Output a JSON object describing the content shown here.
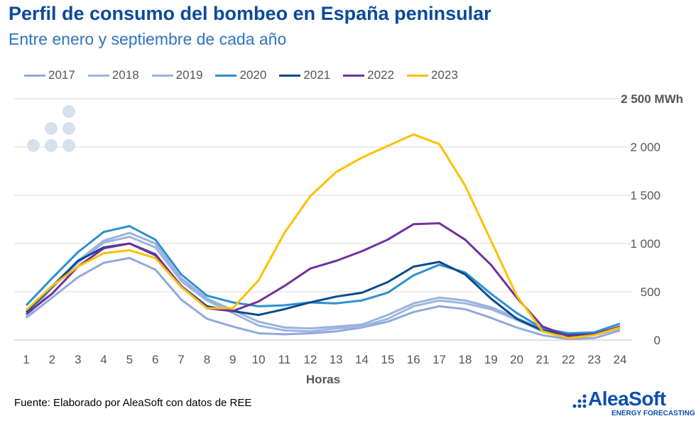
{
  "header": {
    "title": "Perfil de consumo del bombeo en España peninsular",
    "subtitle": "Entre enero y septiembre de cada año"
  },
  "footer": {
    "source": "Fuente: Elaborado por AleaSoft con datos de REE",
    "logo_name": "AleaSoft",
    "logo_tagline": "ENERGY FORECASTING"
  },
  "chart_data": {
    "type": "line",
    "title": "Perfil de consumo del bombeo en España peninsular",
    "subtitle": "Entre enero y septiembre de cada año",
    "xlabel": "Horas",
    "ylabel": "",
    "y_unit": "MWh",
    "ylim": [
      0,
      2500
    ],
    "yticks": [
      "0",
      "500",
      "1 000",
      "1 500",
      "2 000",
      "2 500 MWh"
    ],
    "x": [
      1,
      2,
      3,
      4,
      5,
      6,
      7,
      8,
      9,
      10,
      11,
      12,
      13,
      14,
      15,
      16,
      17,
      18,
      19,
      20,
      21,
      22,
      23,
      24
    ],
    "grid": "horizontal",
    "legend": "top",
    "series": [
      {
        "name": "2017",
        "color": "#8FAADC",
        "values": [
          230,
          440,
          650,
          800,
          850,
          730,
          420,
          220,
          140,
          70,
          60,
          70,
          90,
          130,
          190,
          290,
          350,
          320,
          230,
          130,
          50,
          10,
          20,
          100
        ]
      },
      {
        "name": "2018",
        "color": "#9DB5E0",
        "values": [
          240,
          540,
          800,
          1010,
          1070,
          960,
          610,
          410,
          280,
          150,
          100,
          90,
          120,
          140,
          220,
          350,
          410,
          380,
          320,
          210,
          90,
          40,
          50,
          120
        ]
      },
      {
        "name": "2019",
        "color": "#9AB2DE",
        "values": [
          250,
          560,
          820,
          1030,
          1110,
          1000,
          640,
          430,
          310,
          190,
          130,
          120,
          140,
          160,
          260,
          380,
          440,
          410,
          340,
          230,
          110,
          50,
          60,
          130
        ]
      },
      {
        "name": "2020",
        "color": "#2E8FD0",
        "values": [
          360,
          640,
          910,
          1120,
          1180,
          1040,
          680,
          460,
          390,
          350,
          360,
          390,
          380,
          410,
          490,
          670,
          780,
          700,
          480,
          280,
          120,
          70,
          80,
          170
        ]
      },
      {
        "name": "2021",
        "color": "#0B4A8E",
        "values": [
          290,
          550,
          820,
          960,
          1000,
          880,
          560,
          350,
          300,
          260,
          320,
          390,
          450,
          490,
          600,
          760,
          810,
          680,
          430,
          220,
          100,
          50,
          60,
          140
        ]
      },
      {
        "name": "2022",
        "color": "#7030A0",
        "values": [
          270,
          480,
          760,
          950,
          1000,
          890,
          560,
          330,
          300,
          400,
          560,
          740,
          820,
          920,
          1040,
          1200,
          1210,
          1040,
          780,
          440,
          140,
          40,
          60,
          140
        ]
      },
      {
        "name": "2023",
        "color": "#FFC000",
        "values": [
          310,
          560,
          760,
          900,
          930,
          850,
          550,
          330,
          330,
          620,
          1110,
          1490,
          1740,
          1890,
          2010,
          2130,
          2030,
          1600,
          1030,
          460,
          90,
          20,
          50,
          130
        ]
      }
    ]
  }
}
